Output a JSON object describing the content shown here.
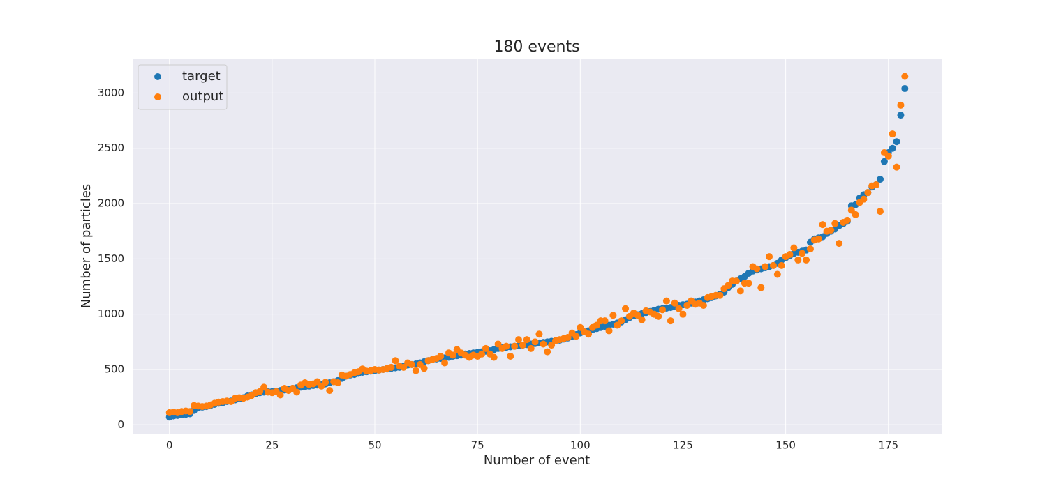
{
  "chart_data": {
    "type": "scatter",
    "title": "180 events",
    "x_label": "Number of event",
    "y_label": "Number of particles",
    "x": [
      0,
      1,
      2,
      3,
      4,
      5,
      6,
      7,
      8,
      9,
      10,
      11,
      12,
      13,
      14,
      15,
      16,
      17,
      18,
      19,
      20,
      21,
      22,
      23,
      24,
      25,
      26,
      27,
      28,
      29,
      30,
      31,
      32,
      33,
      34,
      35,
      36,
      37,
      38,
      39,
      40,
      41,
      42,
      43,
      44,
      45,
      46,
      47,
      48,
      49,
      50,
      51,
      52,
      53,
      54,
      55,
      56,
      57,
      58,
      59,
      60,
      61,
      62,
      63,
      64,
      65,
      66,
      67,
      68,
      69,
      70,
      71,
      72,
      73,
      74,
      75,
      76,
      77,
      78,
      79,
      80,
      81,
      82,
      83,
      84,
      85,
      86,
      87,
      88,
      89,
      90,
      91,
      92,
      93,
      94,
      95,
      96,
      97,
      98,
      99,
      100,
      101,
      102,
      103,
      104,
      105,
      106,
      107,
      108,
      109,
      110,
      111,
      112,
      113,
      114,
      115,
      116,
      117,
      118,
      119,
      120,
      121,
      122,
      123,
      124,
      125,
      126,
      127,
      128,
      129,
      130,
      131,
      132,
      133,
      134,
      135,
      136,
      137,
      138,
      139,
      140,
      141,
      142,
      143,
      144,
      145,
      146,
      147,
      148,
      149,
      150,
      151,
      152,
      153,
      154,
      155,
      156,
      157,
      158,
      159,
      160,
      161,
      162,
      163,
      164,
      165,
      166,
      167,
      168,
      169,
      170,
      171,
      172,
      173,
      174,
      175,
      176,
      177,
      178,
      179
    ],
    "series": [
      {
        "name": "target",
        "color": "#1f77b4",
        "values": [
          70,
          80,
          85,
          90,
          95,
          100,
          130,
          155,
          160,
          165,
          175,
          185,
          195,
          200,
          210,
          215,
          225,
          235,
          245,
          260,
          270,
          280,
          290,
          295,
          300,
          300,
          305,
          310,
          315,
          320,
          330,
          335,
          340,
          345,
          350,
          355,
          360,
          365,
          370,
          380,
          390,
          400,
          420,
          440,
          450,
          455,
          465,
          475,
          480,
          485,
          490,
          495,
          500,
          505,
          510,
          515,
          520,
          530,
          540,
          545,
          550,
          560,
          570,
          580,
          590,
          595,
          600,
          605,
          610,
          620,
          625,
          630,
          640,
          645,
          650,
          655,
          660,
          665,
          670,
          680,
          690,
          695,
          700,
          705,
          710,
          715,
          720,
          725,
          730,
          735,
          740,
          745,
          750,
          755,
          760,
          765,
          775,
          785,
          800,
          815,
          830,
          840,
          850,
          860,
          870,
          880,
          890,
          900,
          910,
          920,
          930,
          950,
          970,
          985,
          995,
          1005,
          1015,
          1025,
          1035,
          1045,
          1050,
          1055,
          1060,
          1070,
          1080,
          1085,
          1090,
          1100,
          1110,
          1120,
          1130,
          1140,
          1150,
          1165,
          1180,
          1200,
          1240,
          1270,
          1300,
          1320,
          1340,
          1370,
          1390,
          1400,
          1410,
          1420,
          1430,
          1440,
          1460,
          1490,
          1510,
          1530,
          1550,
          1560,
          1570,
          1580,
          1650,
          1680,
          1690,
          1700,
          1730,
          1750,
          1770,
          1800,
          1820,
          1840,
          1980,
          1990,
          2050,
          2080,
          2100,
          2150,
          2170,
          2220,
          2380,
          2460,
          2500,
          2560,
          2800,
          3040
        ]
      },
      {
        "name": "output",
        "color": "#ff7f0e",
        "values": [
          110,
          115,
          110,
          120,
          125,
          120,
          175,
          170,
          165,
          170,
          180,
          195,
          205,
          210,
          215,
          210,
          240,
          245,
          240,
          250,
          265,
          290,
          300,
          340,
          295,
          290,
          300,
          270,
          330,
          310,
          330,
          295,
          360,
          380,
          365,
          370,
          390,
          350,
          385,
          310,
          390,
          380,
          450,
          440,
          455,
          470,
          480,
          505,
          485,
          490,
          500,
          495,
          500,
          510,
          520,
          580,
          530,
          520,
          560,
          545,
          490,
          545,
          510,
          580,
          590,
          600,
          620,
          560,
          650,
          630,
          680,
          650,
          630,
          610,
          630,
          620,
          640,
          690,
          640,
          610,
          730,
          690,
          710,
          620,
          710,
          770,
          720,
          770,
          690,
          750,
          820,
          730,
          660,
          720,
          760,
          770,
          780,
          790,
          830,
          800,
          880,
          840,
          820,
          880,
          900,
          940,
          940,
          850,
          990,
          900,
          940,
          1050,
          980,
          1010,
          990,
          950,
          1030,
          1020,
          1000,
          980,
          1040,
          1120,
          940,
          1100,
          1050,
          1000,
          1080,
          1120,
          1090,
          1100,
          1080,
          1150,
          1160,
          1170,
          1170,
          1230,
          1260,
          1300,
          1300,
          1210,
          1280,
          1280,
          1430,
          1410,
          1240,
          1430,
          1520,
          1440,
          1360,
          1440,
          1520,
          1540,
          1600,
          1490,
          1550,
          1490,
          1590,
          1670,
          1680,
          1810,
          1750,
          1760,
          1820,
          1640,
          1830,
          1850,
          1940,
          1900,
          2010,
          2040,
          2100,
          2160,
          2170,
          1930,
          2460,
          2430,
          2630,
          2330,
          2890,
          3150
        ]
      }
    ],
    "xlim": [
      -8.95,
      187.95
    ],
    "ylim": [
      -80,
      3305
    ],
    "xticks": [
      0,
      25,
      50,
      75,
      100,
      125,
      150,
      175
    ],
    "yticks": [
      0,
      500,
      1000,
      1500,
      2000,
      2500,
      3000
    ],
    "grid": true,
    "legend": "upper left"
  }
}
